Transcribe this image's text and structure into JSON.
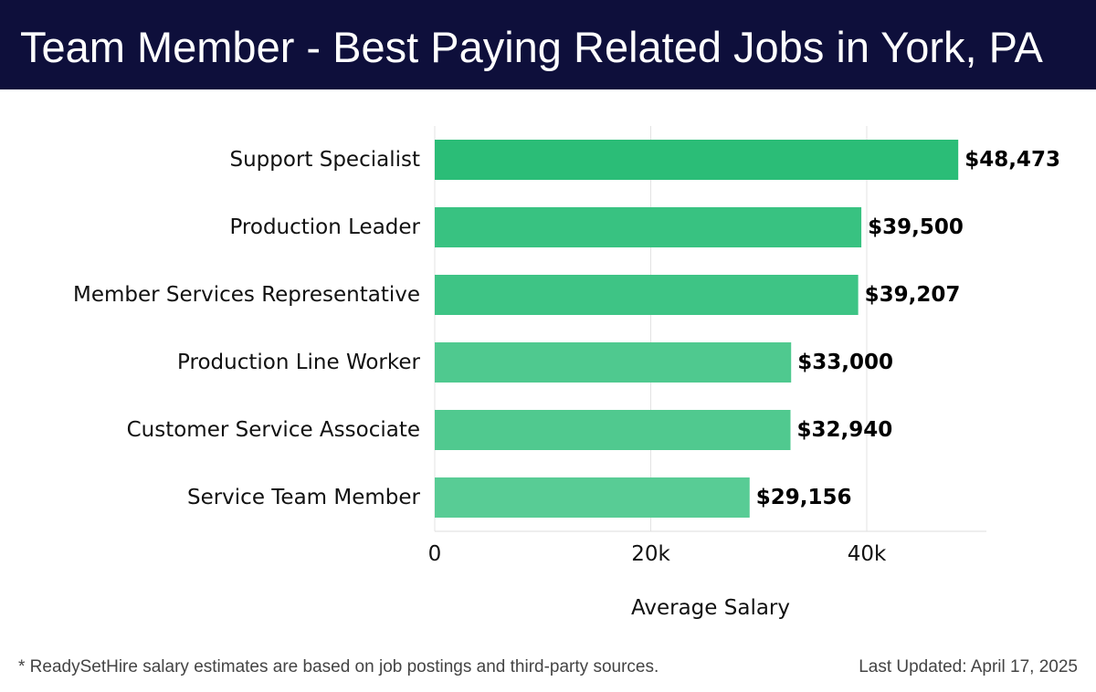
{
  "header": {
    "title": "Team Member - Best Paying Related Jobs in York, PA"
  },
  "chart_data": {
    "type": "bar",
    "orientation": "horizontal",
    "title": "Team Member - Best Paying Related Jobs in York, PA",
    "xlabel": "Average Salary",
    "ylabel": "",
    "xlim": [
      0,
      51000
    ],
    "x_ticks": [
      0,
      20000,
      40000
    ],
    "x_tick_labels": [
      "0",
      "20k",
      "40k"
    ],
    "grid": true,
    "legend": "none",
    "categories": [
      "Support Specialist",
      "Production Leader",
      "Member Services Representative",
      "Production Line Worker",
      "Customer Service Associate",
      "Service Team Member"
    ],
    "values": [
      48473,
      39500,
      39207,
      33000,
      32940,
      29156
    ],
    "value_labels": [
      "$48,473",
      "$39,500",
      "$39,207",
      "$33,000",
      "$32,940",
      "$29,156"
    ],
    "bar_colors": [
      "#2bbd77",
      "#38c281",
      "#3ec485",
      "#4fc98f",
      "#50c98f",
      "#58cc95"
    ]
  },
  "footer": {
    "note": "* ReadySetHire salary estimates are based on job postings and third-party sources.",
    "updated": "Last Updated: April 17, 2025"
  }
}
